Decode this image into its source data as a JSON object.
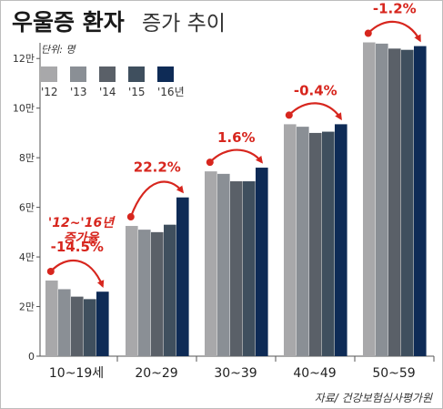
{
  "chart_data": {
    "type": "bar",
    "title": "우울증 환자",
    "subtitle": "증가 추이",
    "unit_label": "단위: 명",
    "categories": [
      "10~19세",
      "20~29",
      "30~39",
      "40~49",
      "50~59"
    ],
    "series": [
      {
        "name": "'12",
        "color": "#a8a8aa",
        "values": [
          30500,
          52500,
          74500,
          93500,
          126500
        ]
      },
      {
        "name": "'13",
        "color": "#8a8f95",
        "values": [
          27000,
          51000,
          73500,
          92500,
          126000
        ]
      },
      {
        "name": "'14",
        "color": "#5a6068",
        "values": [
          24000,
          50000,
          70500,
          90000,
          124000
        ]
      },
      {
        "name": "'15",
        "color": "#3f4f5e",
        "values": [
          23000,
          53000,
          70500,
          90500,
          123500
        ]
      },
      {
        "name": "'16년",
        "color": "#0e2b56",
        "values": [
          26000,
          64000,
          76000,
          93500,
          125000
        ]
      }
    ],
    "ylim": [
      0,
      130000
    ],
    "y_ticks": [
      0,
      20000,
      40000,
      60000,
      80000,
      100000,
      120000
    ],
    "y_tick_labels": [
      "0",
      "2만",
      "4만",
      "6만",
      "8만",
      "10만",
      "12만"
    ],
    "change_labels": [
      "-14.5%",
      "22.2%",
      "1.6%",
      "-0.4%",
      "-1.2%"
    ],
    "change_note": [
      "'12~'16년",
      "증가율"
    ],
    "accent_color": "#d7261e",
    "grid": false,
    "legend_position": "top-left",
    "source": "자료/ 건강보험심사평가원"
  }
}
